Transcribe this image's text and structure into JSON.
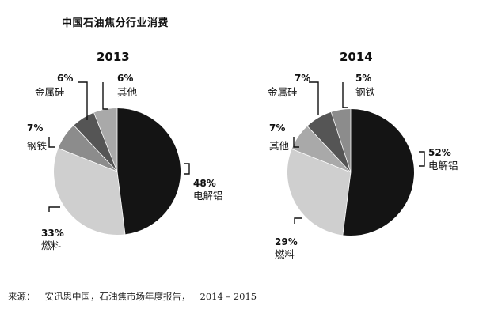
{
  "title": "中国石油焦分行业消费",
  "source": {
    "prefix": "来源：",
    "text": "安迅思中国，石油焦市场年度报告，",
    "years": "2014 – 2015"
  },
  "colors": {
    "电解铝": "#141414",
    "燃料": "#cfcfcf",
    "钢铁": "#8c8c8c",
    "金属硅": "#555555",
    "其他": "#a9a9a9"
  },
  "chart_data": [
    {
      "type": "pie",
      "title": "2013",
      "start_angle_deg": 0,
      "direction": "clockwise",
      "slices": [
        {
          "label": "电解铝",
          "value": 48,
          "value_label": "48%"
        },
        {
          "label": "燃料",
          "value": 33,
          "value_label": "33%"
        },
        {
          "label": "钢铁",
          "value": 7,
          "value_label": "7%"
        },
        {
          "label": "金属硅",
          "value": 6,
          "value_label": "6%"
        },
        {
          "label": "其他",
          "value": 6,
          "value_label": "6%"
        }
      ]
    },
    {
      "type": "pie",
      "title": "2014",
      "start_angle_deg": 0,
      "direction": "clockwise",
      "slices": [
        {
          "label": "电解铝",
          "value": 52,
          "value_label": "52%"
        },
        {
          "label": "燃料",
          "value": 29,
          "value_label": "29%"
        },
        {
          "label": "其他",
          "value": 7,
          "value_label": "7%"
        },
        {
          "label": "金属硅",
          "value": 7,
          "value_label": "7%"
        },
        {
          "label": "钢铁",
          "value": 5,
          "value_label": "5%"
        }
      ]
    }
  ]
}
